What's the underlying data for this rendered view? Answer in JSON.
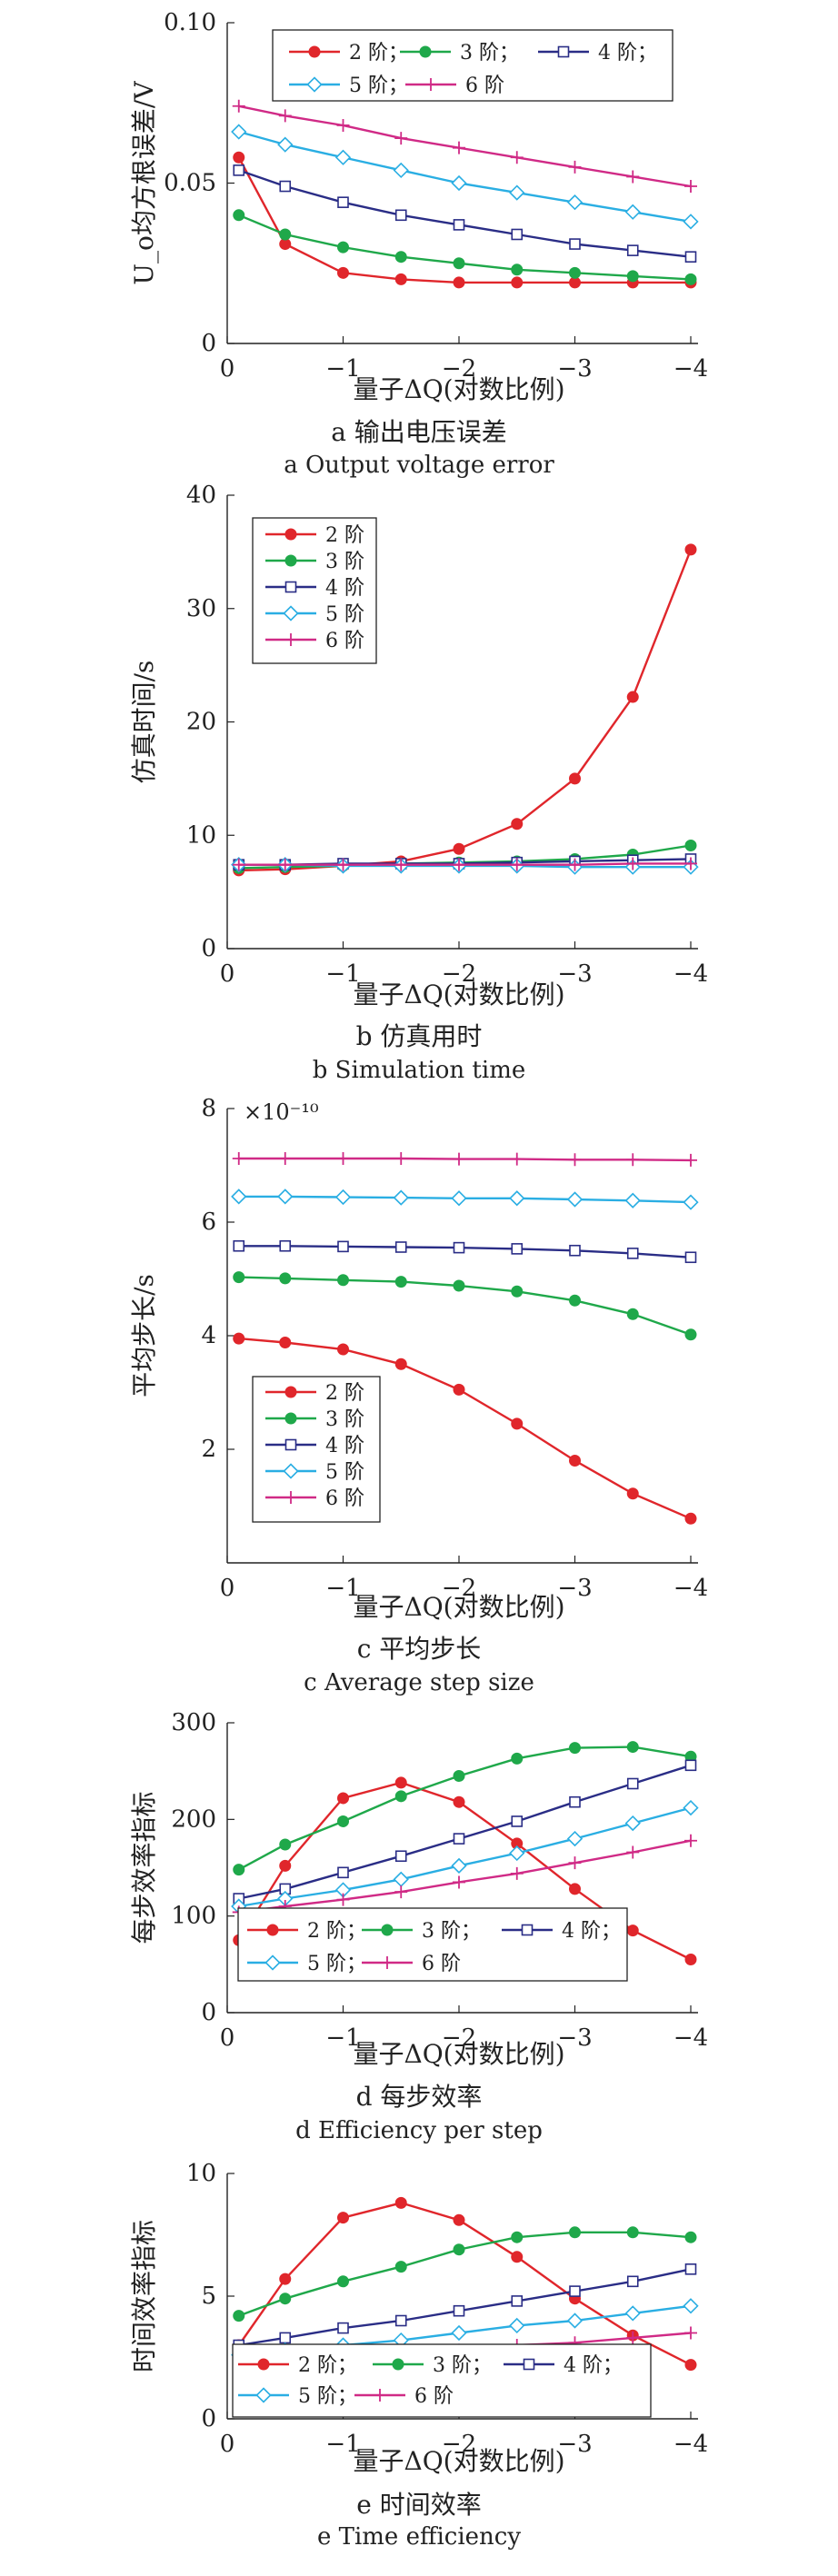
{
  "figure": {
    "charts": [
      {
        "caption_cn": "a  输出电压误差",
        "caption_en": "a  Output voltage error"
      },
      {
        "caption_cn": "b  仿真用时",
        "caption_en": "b  Simulation time"
      },
      {
        "caption_cn": "c  平均步长",
        "caption_en": "c  Average step size"
      },
      {
        "caption_cn": "d  每步效率",
        "caption_en": "d  Efficiency per step"
      },
      {
        "caption_cn": "e  时间效率",
        "caption_en": "e  Time efficiency"
      }
    ]
  },
  "chart_data": [
    {
      "type": "line",
      "title": "",
      "xlabel": "量子ΔQ(对数比例)",
      "ylabel": "U_o均方根误差/V",
      "y_exponent": "",
      "x": [
        -0.1,
        -0.5,
        -1,
        -1.5,
        -2,
        -2.5,
        -3,
        -3.5,
        -4
      ],
      "xlim": [
        0,
        -4
      ],
      "ylim": [
        0,
        0.1
      ],
      "xticks": [
        0,
        -1,
        -2,
        -3,
        -4
      ],
      "xtick_labels": [
        "0",
        "−1",
        "−2",
        "−3",
        "−4"
      ],
      "yticks": [
        0,
        0.05,
        0.1
      ],
      "ytick_labels": [
        "0",
        "0.05",
        "0.10"
      ],
      "legend_position": "top",
      "legend_labels": [
        "2 阶；",
        "3 阶；",
        "4 阶；",
        "5 阶；",
        "6 阶"
      ],
      "legend_layout": "compact",
      "series": [
        {
          "name": "2 阶",
          "color": "#e0262b",
          "marker": "circle",
          "values": [
            0.058,
            0.031,
            0.022,
            0.02,
            0.019,
            0.019,
            0.019,
            0.019,
            0.019
          ]
        },
        {
          "name": "3 阶",
          "color": "#1fa84a",
          "marker": "circle",
          "values": [
            0.04,
            0.034,
            0.03,
            0.027,
            0.025,
            0.023,
            0.022,
            0.021,
            0.02
          ]
        },
        {
          "name": "4 阶",
          "color": "#2a2d86",
          "marker": "square",
          "values": [
            0.054,
            0.049,
            0.044,
            0.04,
            0.037,
            0.034,
            0.031,
            0.029,
            0.027
          ]
        },
        {
          "name": "5 阶",
          "color": "#2aaee3",
          "marker": "diamond",
          "values": [
            0.066,
            0.062,
            0.058,
            0.054,
            0.05,
            0.047,
            0.044,
            0.041,
            0.038
          ]
        },
        {
          "name": "6 阶",
          "color": "#d02a86",
          "marker": "plus",
          "values": [
            0.074,
            0.071,
            0.068,
            0.064,
            0.061,
            0.058,
            0.055,
            0.052,
            0.049
          ]
        }
      ]
    },
    {
      "type": "line",
      "title": "",
      "xlabel": "量子ΔQ(对数比例)",
      "ylabel": "仿真时间/s",
      "y_exponent": "",
      "x": [
        -0.1,
        -0.5,
        -1,
        -1.5,
        -2,
        -2.5,
        -3,
        -3.5,
        -4
      ],
      "xlim": [
        0,
        -4
      ],
      "ylim": [
        0,
        40
      ],
      "xticks": [
        0,
        -1,
        -2,
        -3,
        -4
      ],
      "xtick_labels": [
        "0",
        "−1",
        "−2",
        "−3",
        "−4"
      ],
      "yticks": [
        0,
        10,
        20,
        30,
        40
      ],
      "ytick_labels": [
        "0",
        "10",
        "20",
        "30",
        "40"
      ],
      "legend_position": "top-left",
      "legend_labels": [
        "2 阶",
        "3 阶",
        "4 阶",
        "5 阶",
        "6 阶"
      ],
      "legend_layout": "vertical",
      "series": [
        {
          "name": "2 阶",
          "color": "#e0262b",
          "marker": "circle",
          "values": [
            6.9,
            7.0,
            7.3,
            7.7,
            8.8,
            11.0,
            15.0,
            22.2,
            35.2
          ]
        },
        {
          "name": "3 阶",
          "color": "#1fa84a",
          "marker": "circle",
          "values": [
            7.1,
            7.2,
            7.3,
            7.5,
            7.6,
            7.7,
            7.9,
            8.3,
            9.1
          ]
        },
        {
          "name": "4 阶",
          "color": "#2a2d86",
          "marker": "square",
          "values": [
            7.4,
            7.4,
            7.5,
            7.5,
            7.5,
            7.6,
            7.7,
            7.8,
            7.9
          ]
        },
        {
          "name": "5 阶",
          "color": "#2aaee3",
          "marker": "diamond",
          "values": [
            7.4,
            7.4,
            7.3,
            7.3,
            7.3,
            7.3,
            7.2,
            7.2,
            7.2
          ]
        },
        {
          "name": "6 阶",
          "color": "#d02a86",
          "marker": "plus",
          "values": [
            7.4,
            7.4,
            7.4,
            7.4,
            7.4,
            7.4,
            7.4,
            7.5,
            7.5
          ]
        }
      ]
    },
    {
      "type": "line",
      "title": "",
      "xlabel": "量子ΔQ(对数比例)",
      "ylabel": "平均步长/s",
      "y_exponent": "×10⁻¹⁰",
      "x": [
        -0.1,
        -0.5,
        -1,
        -1.5,
        -2,
        -2.5,
        -3,
        -3.5,
        -4
      ],
      "xlim": [
        0,
        -4
      ],
      "ylim": [
        0,
        8
      ],
      "xticks": [
        0,
        -1,
        -2,
        -3,
        -4
      ],
      "xtick_labels": [
        "0",
        "−1",
        "−2",
        "−3",
        "−4"
      ],
      "yticks": [
        2,
        4,
        6,
        8
      ],
      "ytick_labels": [
        "2",
        "4",
        "6",
        "8"
      ],
      "legend_position": "bottom-left",
      "legend_labels": [
        "2 阶",
        "3 阶",
        "4 阶",
        "5 阶",
        "6 阶"
      ],
      "legend_layout": "vertical",
      "series": [
        {
          "name": "2 阶",
          "color": "#e0262b",
          "marker": "circle",
          "values": [
            3.95,
            3.88,
            3.76,
            3.5,
            3.05,
            2.45,
            1.8,
            1.22,
            0.78
          ]
        },
        {
          "name": "3 阶",
          "color": "#1fa84a",
          "marker": "circle",
          "values": [
            5.03,
            5.01,
            4.98,
            4.95,
            4.88,
            4.78,
            4.62,
            4.38,
            4.02
          ]
        },
        {
          "name": "4 阶",
          "color": "#2a2d86",
          "marker": "square",
          "values": [
            5.58,
            5.58,
            5.57,
            5.56,
            5.55,
            5.53,
            5.5,
            5.45,
            5.38
          ]
        },
        {
          "name": "5 阶",
          "color": "#2aaee3",
          "marker": "diamond",
          "values": [
            6.45,
            6.45,
            6.44,
            6.43,
            6.42,
            6.42,
            6.4,
            6.38,
            6.35
          ]
        },
        {
          "name": "6 阶",
          "color": "#d02a86",
          "marker": "plus",
          "values": [
            7.12,
            7.12,
            7.12,
            7.12,
            7.11,
            7.11,
            7.1,
            7.1,
            7.09
          ]
        }
      ]
    },
    {
      "type": "line",
      "title": "",
      "xlabel": "量子ΔQ(对数比例)",
      "ylabel": "每步效率指标",
      "y_exponent": "",
      "x": [
        -0.1,
        -0.5,
        -1,
        -1.5,
        -2,
        -2.5,
        -3,
        -3.5,
        -4
      ],
      "xlim": [
        0,
        -4
      ],
      "ylim": [
        0,
        300
      ],
      "xticks": [
        0,
        -1,
        -2,
        -3,
        -4
      ],
      "xtick_labels": [
        "0",
        "−1",
        "−2",
        "−3",
        "−4"
      ],
      "yticks": [
        0,
        100,
        200,
        300
      ],
      "ytick_labels": [
        "0",
        "100",
        "200",
        "300"
      ],
      "legend_position": "bottom",
      "legend_labels": [
        "2 阶；",
        "3 阶；",
        "4 阶；",
        "5 阶；",
        "6 阶"
      ],
      "legend_layout": "compact",
      "series": [
        {
          "name": "2 阶",
          "color": "#e0262b",
          "marker": "circle",
          "values": [
            75,
            152,
            222,
            238,
            218,
            175,
            128,
            85,
            55
          ]
        },
        {
          "name": "3 阶",
          "color": "#1fa84a",
          "marker": "circle",
          "values": [
            148,
            174,
            198,
            224,
            245,
            263,
            274,
            275,
            265
          ]
        },
        {
          "name": "4 阶",
          "color": "#2a2d86",
          "marker": "square",
          "values": [
            118,
            128,
            145,
            162,
            180,
            198,
            218,
            237,
            256
          ]
        },
        {
          "name": "5 阶",
          "color": "#2aaee3",
          "marker": "diamond",
          "values": [
            110,
            118,
            127,
            138,
            152,
            165,
            180,
            196,
            212
          ]
        },
        {
          "name": "6 阶",
          "color": "#d02a86",
          "marker": "plus",
          "values": [
            104,
            110,
            117,
            125,
            135,
            144,
            155,
            166,
            178
          ]
        }
      ]
    },
    {
      "type": "line",
      "title": "",
      "xlabel": "量子ΔQ(对数比例)",
      "ylabel": "时间效率指标",
      "y_exponent": "",
      "x": [
        -0.1,
        -0.5,
        -1,
        -1.5,
        -2,
        -2.5,
        -3,
        -3.5,
        -4
      ],
      "xlim": [
        0,
        -4
      ],
      "ylim": [
        0,
        10
      ],
      "xticks": [
        0,
        -1,
        -2,
        -3,
        -4
      ],
      "xtick_labels": [
        "0",
        "−1",
        "−2",
        "−3",
        "−4"
      ],
      "yticks": [
        0,
        5,
        10
      ],
      "ytick_labels": [
        "0",
        "5",
        "10"
      ],
      "legend_position": "bottom",
      "legend_labels": [
        "2 阶；",
        "3 阶；",
        "4 阶；",
        "5 阶；",
        "6 阶"
      ],
      "legend_layout": "compact",
      "series": [
        {
          "name": "2 阶",
          "color": "#e0262b",
          "marker": "circle",
          "values": [
            3.0,
            5.7,
            8.2,
            8.8,
            8.1,
            6.6,
            4.9,
            3.4,
            2.2
          ]
        },
        {
          "name": "3 阶",
          "color": "#1fa84a",
          "marker": "circle",
          "values": [
            4.2,
            4.9,
            5.6,
            6.2,
            6.9,
            7.4,
            7.6,
            7.6,
            7.4
          ]
        },
        {
          "name": "4 阶",
          "color": "#2a2d86",
          "marker": "square",
          "values": [
            3.0,
            3.3,
            3.7,
            4.0,
            4.4,
            4.8,
            5.2,
            5.6,
            6.1
          ]
        },
        {
          "name": "5 阶",
          "color": "#2aaee3",
          "marker": "diamond",
          "values": [
            2.6,
            2.8,
            3.0,
            3.2,
            3.5,
            3.8,
            4.0,
            4.3,
            4.6
          ]
        },
        {
          "name": "6 阶",
          "color": "#d02a86",
          "marker": "plus",
          "values": [
            2.4,
            2.5,
            2.6,
            2.7,
            2.8,
            3.0,
            3.1,
            3.3,
            3.5
          ]
        }
      ]
    }
  ]
}
